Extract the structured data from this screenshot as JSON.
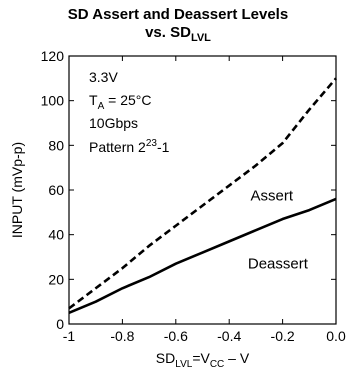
{
  "chart_data": {
    "type": "line",
    "title_line1": "SD Assert and Deassert Levels",
    "title_line2_main": "vs. SD",
    "title_line2_sub": "LVL",
    "ylabel": "INPUT (mVp-p)",
    "xlabel": {
      "prefix": "SD",
      "sub": "LVL",
      "middle": "=V",
      "sub2": "CC",
      "suffix": " – V"
    },
    "xlim": [
      -1.0,
      0.0
    ],
    "ylim": [
      0,
      120
    ],
    "x_ticks": [
      -1.0,
      -0.8,
      -0.6,
      -0.4,
      -0.2,
      0.0
    ],
    "x_tick_labels": [
      "-1",
      "-0.8",
      "-0.6",
      "-0.4",
      "-0.2",
      "0.0"
    ],
    "y_ticks": [
      0,
      20,
      40,
      60,
      80,
      100,
      120
    ],
    "y_tick_labels": [
      "0",
      "20",
      "40",
      "60",
      "80",
      "100",
      "120"
    ],
    "grid": false,
    "conditions": {
      "voltage": "3.3V",
      "ta_prefix": "T",
      "ta_sub": "A",
      "ta_value": " = 25°C",
      "rate": "10Gbps",
      "pattern_prefix": "Pattern 2",
      "pattern_sup": "23",
      "pattern_suffix": "-1"
    },
    "series": [
      {
        "name": "Assert",
        "style": "dashed",
        "x": [
          -1.0,
          -0.9,
          -0.8,
          -0.7,
          -0.6,
          -0.5,
          -0.4,
          -0.3,
          -0.2,
          -0.1,
          0.0
        ],
        "y": [
          7,
          16,
          25,
          35,
          44,
          53,
          62,
          71,
          81,
          96,
          110
        ]
      },
      {
        "name": "Deassert",
        "style": "solid",
        "x": [
          -1.0,
          -0.9,
          -0.8,
          -0.7,
          -0.6,
          -0.5,
          -0.4,
          -0.3,
          -0.2,
          -0.1,
          0.0
        ],
        "y": [
          5,
          10,
          16,
          21,
          27,
          32,
          37,
          42,
          47,
          51,
          56
        ]
      }
    ]
  }
}
